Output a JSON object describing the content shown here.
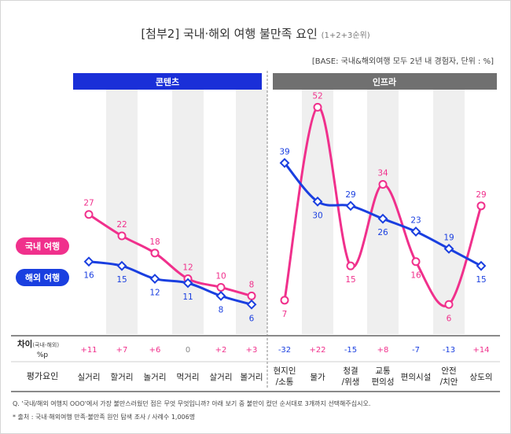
{
  "title_main": "[첨부2] 국내·해외 여행 불만족 요인",
  "title_sub": "(1+2+3순위)",
  "base_note": "[BASE: 국내&해외여행 모두 2년 내 경험자, 단위 : %]",
  "group_labels": [
    "콘텐츠",
    "인프라"
  ],
  "colors": {
    "domestic": "#f0308c",
    "overseas": "#1a3fe0",
    "group_content": "#1a2fd8",
    "group_infra": "#707070",
    "col_shade": "#efefef",
    "grid": "#cfcfcf",
    "text": "#333333",
    "badge_text": "#ffffff"
  },
  "diff_header": {
    "main": "차이",
    "paren": "(국내-해외)",
    "unit": "%p"
  },
  "row_header": "평가요인",
  "footer": {
    "question": "Q. '국내/해외 여행지 OOO'에서 가장 불만스러웠던 점은 무엇 무엇입니까? 아래 보기 중 불만이 컸던 순서대로 3개까지 선택해주십시오.",
    "source": "* 출처 : 국내·해외여행 만족·불만족 원인 탐색 조사 / 사례수 1,006명"
  },
  "chart_data": {
    "type": "line",
    "title": "[첨부2] 국내·해외 여행 불만족 요인 (1+2+3순위)",
    "unit": "%",
    "groups": [
      {
        "name": "콘텐츠",
        "categories": [
          "실거리",
          "할거리",
          "놀거리",
          "먹거리",
          "살거리",
          "볼거리"
        ]
      },
      {
        "name": "인프라",
        "categories": [
          "현지인\n/소통",
          "물가",
          "청결\n/위생",
          "교통\n편의성",
          "편의시설",
          "안전\n/치안",
          "상도의"
        ]
      }
    ],
    "series": [
      {
        "name": "국내 여행",
        "color": "#f0308c",
        "values": [
          [
            27,
            22,
            18,
            12,
            10,
            8
          ],
          [
            7,
            52,
            15,
            34,
            16,
            6,
            29
          ]
        ]
      },
      {
        "name": "해외 여행",
        "color": "#1a3fe0",
        "values": [
          [
            16,
            15,
            12,
            11,
            8,
            6
          ],
          [
            39,
            30,
            29,
            26,
            23,
            19,
            15
          ]
        ]
      }
    ],
    "diff": [
      [
        "+11",
        "+7",
        "+6",
        "0",
        "+2",
        "+3"
      ],
      [
        "-32",
        "+22",
        "-15",
        "+8",
        "-7",
        "-13",
        "+14"
      ]
    ],
    "ylim": [
      0,
      55
    ],
    "grid": false
  }
}
